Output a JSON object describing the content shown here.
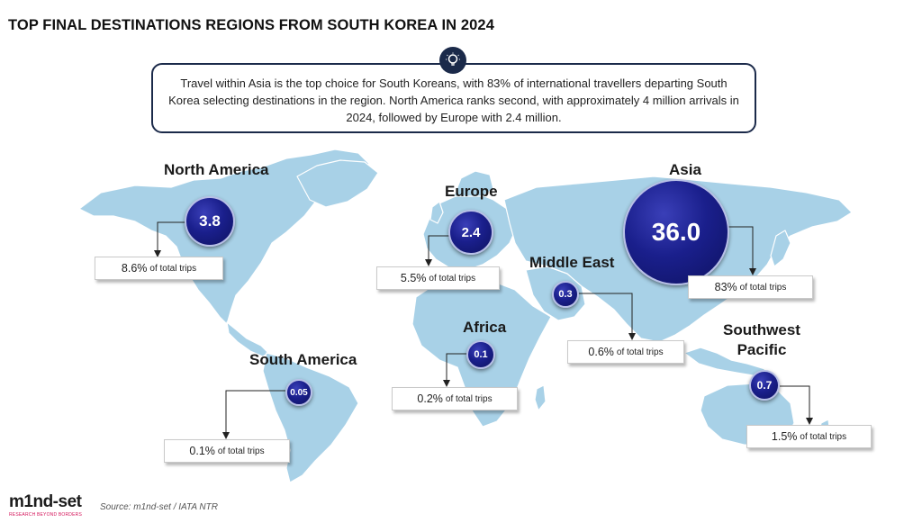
{
  "title": "TOP FINAL DESTINATIONS REGIONS FROM SOUTH KOREA IN 2024",
  "callout": {
    "icon": "lightbulb-icon",
    "text": "Travel within Asia is the top choice for South Koreans, with 83% of international travellers departing South Korea selecting destinations in the region. North America ranks second, with approximately 4 million arrivals in 2024, followed by Europe with 2.4 million."
  },
  "chart_data": {
    "type": "bubble",
    "regions": [
      {
        "name": "North America",
        "value": "3.8",
        "share": "8.6%",
        "share_suffix": "of total trips"
      },
      {
        "name": "Europe",
        "value": "2.4",
        "share": "5.5%",
        "share_suffix": "of total trips"
      },
      {
        "name": "Asia",
        "value": "36.0",
        "share": "83%",
        "share_suffix": "of total trips"
      },
      {
        "name": "Middle East",
        "value": "0.3",
        "share": "0.6%",
        "share_suffix": "of total trips"
      },
      {
        "name": "Africa",
        "value": "0.1",
        "share": "0.2%",
        "share_suffix": "of total trips"
      },
      {
        "name": "South America",
        "value": "0.05",
        "share": "0.1%",
        "share_suffix": "of total trips"
      },
      {
        "name": "Southwest Pacific",
        "value": "0.7",
        "share": "1.5%",
        "share_suffix": "of total trips"
      }
    ]
  },
  "colors": {
    "bubble": "#1a1f8c",
    "map": "#a8d1e7",
    "border": "#1b2a4a",
    "brand_accent": "#d4145a"
  },
  "footer": {
    "logo": "m1nd-set",
    "logo_tagline": "RESEARCH BEYOND BORDERS",
    "source": "Source: m1nd-set / IATA NTR"
  }
}
